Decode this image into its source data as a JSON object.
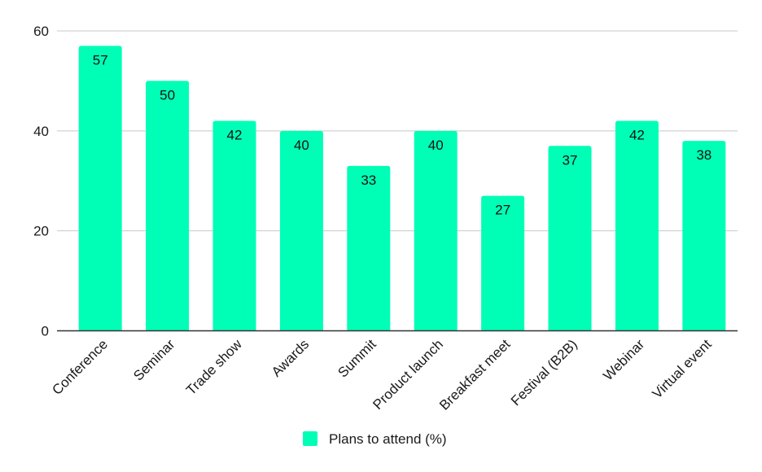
{
  "colors": {
    "bar": "#00ffb6",
    "grid": "#c8c8c8",
    "axis": "#333333"
  },
  "legend": {
    "position": "bottom",
    "label": "Plans to attend (%)"
  },
  "chart_data": {
    "type": "bar",
    "title": "",
    "xlabel": "",
    "ylabel": "",
    "ylim": [
      0,
      60
    ],
    "yticks": [
      0,
      20,
      40,
      60
    ],
    "grid": true,
    "categories": [
      "Conference",
      "Seminar",
      "Trade show",
      "Awards",
      "Summit",
      "Product launch",
      "Breakfast meet",
      "Festival (B2B)",
      "Webinar",
      "Virtual event"
    ],
    "series": [
      {
        "name": "Plans to attend (%)",
        "values": [
          57,
          50,
          42,
          40,
          33,
          40,
          27,
          37,
          42,
          38
        ]
      }
    ]
  }
}
